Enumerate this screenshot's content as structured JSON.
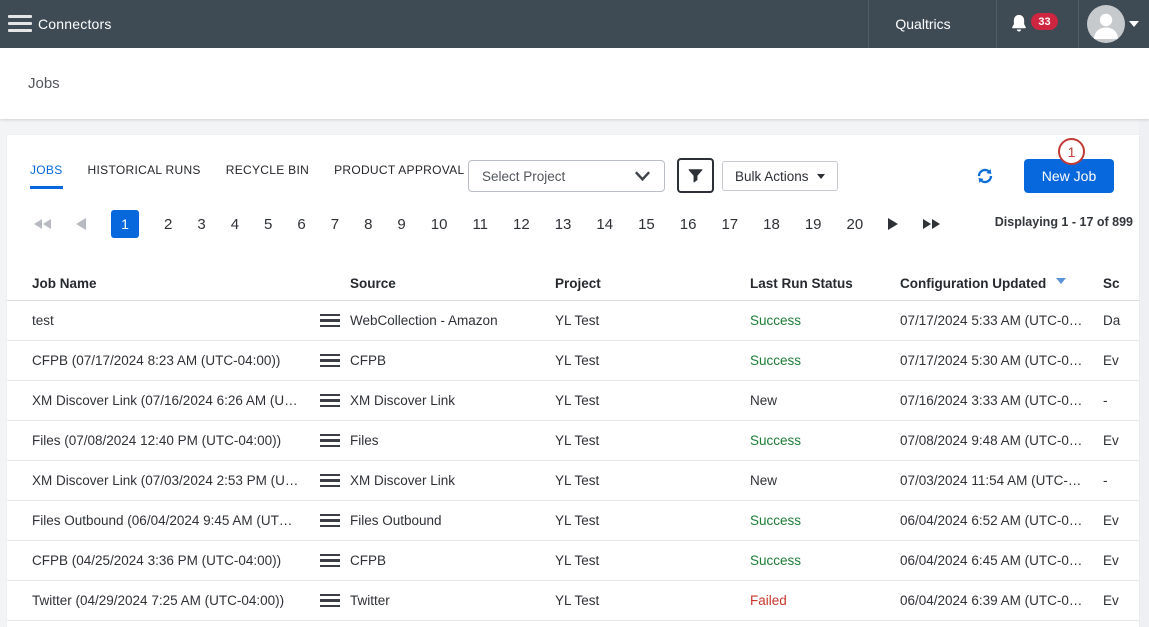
{
  "topbar": {
    "app_title": "Connectors",
    "brand": "Qualtrics",
    "notification_count": "33"
  },
  "page": {
    "title": "Jobs"
  },
  "tabs": [
    {
      "label": "JOBS",
      "active": true
    },
    {
      "label": "HISTORICAL RUNS",
      "active": false
    },
    {
      "label": "RECYCLE BIN",
      "active": false
    },
    {
      "label": "PRODUCT APPROVAL",
      "active": false
    }
  ],
  "toolbar": {
    "project_select_value": "Select Project",
    "bulk_actions_label": "Bulk Actions",
    "new_job_label": "New Job",
    "annotation_badge": "1"
  },
  "pagination": {
    "pages": [
      "1",
      "2",
      "3",
      "4",
      "5",
      "6",
      "7",
      "8",
      "9",
      "10",
      "11",
      "12",
      "13",
      "14",
      "15",
      "16",
      "17",
      "18",
      "19",
      "20"
    ],
    "active_page": "1",
    "summary": "Displaying 1 - 17 of 899"
  },
  "table": {
    "columns": [
      "Job Name",
      "Source",
      "Project",
      "Last Run Status",
      "Configuration Updated",
      "Sc"
    ],
    "sorted_column": "Configuration Updated",
    "rows": [
      {
        "name": "test",
        "source": "WebCollection - Amazon",
        "project": "YL Test",
        "status": "Success",
        "updated": "07/17/2024 5:33 AM (UTC-0…",
        "schedule": "Da"
      },
      {
        "name": "CFPB (07/17/2024 8:23 AM (UTC-04:00))",
        "source": "CFPB",
        "project": "YL Test",
        "status": "Success",
        "updated": "07/17/2024 5:30 AM (UTC-0…",
        "schedule": "Ev"
      },
      {
        "name": "XM Discover Link (07/16/2024 6:26 AM (U…",
        "source": "XM Discover Link",
        "project": "YL Test",
        "status": "New",
        "updated": "07/16/2024 3:33 AM (UTC-0…",
        "schedule": "-"
      },
      {
        "name": "Files (07/08/2024 12:40 PM (UTC-04:00))",
        "source": "Files",
        "project": "YL Test",
        "status": "Success",
        "updated": "07/08/2024 9:48 AM (UTC-0…",
        "schedule": "Ev"
      },
      {
        "name": "XM Discover Link (07/03/2024 2:53 PM (U…",
        "source": "XM Discover Link",
        "project": "YL Test",
        "status": "New",
        "updated": "07/03/2024 11:54 AM (UTC-…",
        "schedule": "-"
      },
      {
        "name": "Files Outbound (06/04/2024 9:45 AM (UT…",
        "source": "Files Outbound",
        "project": "YL Test",
        "status": "Success",
        "updated": "06/04/2024 6:52 AM (UTC-0…",
        "schedule": "Ev"
      },
      {
        "name": "CFPB (04/25/2024 3:36 PM (UTC-04:00))",
        "source": "CFPB",
        "project": "YL Test",
        "status": "Success",
        "updated": "06/04/2024 6:45 AM (UTC-0…",
        "schedule": "Ev"
      },
      {
        "name": "Twitter (04/29/2024 7:25 AM (UTC-04:00))",
        "source": "Twitter",
        "project": "YL Test",
        "status": "Failed",
        "updated": "06/04/2024 6:39 AM (UTC-0…",
        "schedule": "Ev"
      }
    ]
  },
  "colors": {
    "accent_blue": "#0768dd",
    "topbar_bg": "#3e4b54",
    "success_green": "#1e7e34",
    "failed_red": "#c9372c",
    "badge_red": "#ce2540",
    "annotation_red": "#c23a35"
  }
}
